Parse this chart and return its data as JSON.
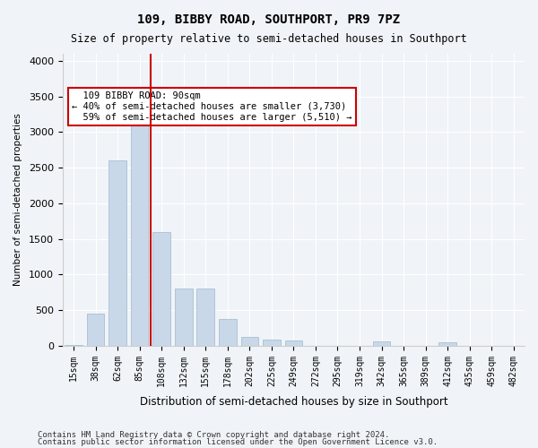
{
  "title": "109, BIBBY ROAD, SOUTHPORT, PR9 7PZ",
  "subtitle": "Size of property relative to semi-detached houses in Southport",
  "xlabel": "Distribution of semi-detached houses by size in Southport",
  "ylabel": "Number of semi-detached properties",
  "footer_line1": "Contains HM Land Registry data © Crown copyright and database right 2024.",
  "footer_line2": "Contains public sector information licensed under the Open Government Licence v3.0.",
  "bar_labels": [
    "15sqm",
    "38sqm",
    "62sqm",
    "85sqm",
    "108sqm",
    "132sqm",
    "155sqm",
    "178sqm",
    "202sqm",
    "225sqm",
    "249sqm",
    "272sqm",
    "295sqm",
    "319sqm",
    "342sqm",
    "365sqm",
    "389sqm",
    "412sqm",
    "435sqm",
    "459sqm",
    "482sqm"
  ],
  "bar_values": [
    10,
    450,
    2600,
    3200,
    1600,
    800,
    800,
    380,
    130,
    90,
    80,
    0,
    0,
    0,
    60,
    0,
    0,
    50,
    0,
    0,
    0
  ],
  "bar_color": "#c8d8e8",
  "bar_edgecolor": "#a0b8cc",
  "property_value": 90,
  "property_label": "109 BIBBY ROAD: 90sqm",
  "pct_smaller": 40,
  "pct_larger": 59,
  "n_smaller": 3730,
  "n_larger": 5510,
  "vline_color": "#cc0000",
  "vline_x_index": 4,
  "ylim": [
    0,
    4100
  ],
  "yticks": [
    0,
    500,
    1000,
    1500,
    2000,
    2500,
    3000,
    3500,
    4000
  ],
  "background_color": "#f0f4f8",
  "plot_background": "#f0f4f8",
  "grid_color": "#ffffff",
  "annotation_box_color": "#ffffff",
  "annotation_box_edge": "#cc0000"
}
